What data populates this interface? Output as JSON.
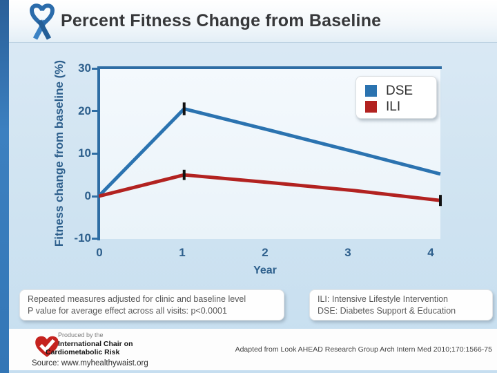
{
  "slide": {
    "title": "Percent Fitness Change from Baseline"
  },
  "icons": {
    "header_icon": "blue-awareness-ribbon",
    "logo_icon": "red-heart-checkmark"
  },
  "colors": {
    "axis": "#2e6da4",
    "tick_label": "#2d5f8c",
    "error_bar": "#111111",
    "dse_blue": "#2b73b0",
    "ili_red": "#b22220"
  },
  "chart_data": {
    "type": "line",
    "title": "Percent Fitness Change from Baseline",
    "x": [
      0,
      1,
      2,
      3,
      4
    ],
    "xticks": [
      0,
      1,
      2,
      3,
      4
    ],
    "yticks": [
      30,
      20,
      10,
      0,
      -10
    ],
    "xlabel": "Year",
    "ylabel": "Fitness change from baseline (%)",
    "ylim": [
      -10,
      30
    ],
    "grid": false,
    "legend_position": "top-right",
    "series": [
      {
        "name": "DSE",
        "color": "#2b73b0",
        "values": [
          0,
          20.5,
          15.5,
          10.4,
          5.2
        ],
        "error_bars": [
          {
            "x": 1,
            "plus_minus": 1.5
          }
        ]
      },
      {
        "name": "ILI",
        "color": "#b22220",
        "values": [
          0,
          5.0,
          3.2,
          1.3,
          -1.0
        ],
        "error_bars": [
          {
            "x": 1,
            "plus_minus": 1.2
          },
          {
            "x": 4,
            "plus_minus": 1.3
          }
        ]
      }
    ]
  },
  "notes_box": {
    "line1": "Repeated measures adjusted for clinic and baseline level",
    "line2": "P value for average effect across all visits: p<0.0001"
  },
  "abbrev_box": {
    "line1": "ILI: Intensive Lifestyle Intervention",
    "line2": "DSE: Diabetes Support & Education"
  },
  "footer": {
    "produced_by": "Produced by the",
    "org_line1": "International Chair on",
    "org_line2": "Cardiometabolic Risk",
    "citation": "Adapted from Look AHEAD Research Group Arch Intern Med 2010;170:1566-75",
    "source": "Source: www.myhealthywaist.org"
  }
}
